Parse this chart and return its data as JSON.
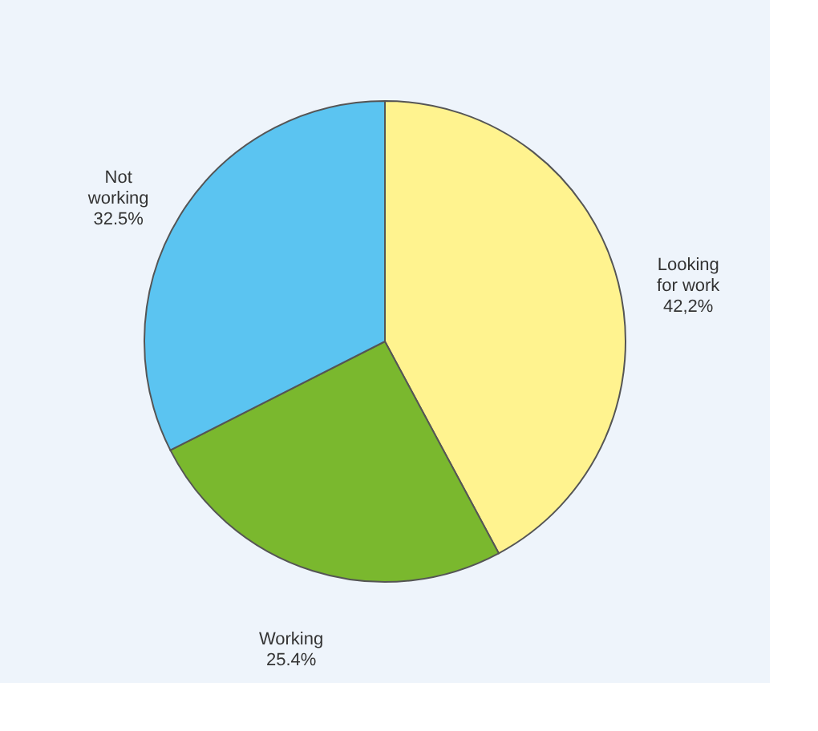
{
  "chart_data": {
    "type": "pie",
    "categories": [
      "Looking for work",
      "Working",
      "Not working"
    ],
    "values": [
      42.2,
      25.4,
      32.5
    ],
    "value_labels": [
      "42,2%",
      "25.4%",
      "32.5%"
    ],
    "colors": [
      "#fff38f",
      "#7ab82e",
      "#5bc4f1"
    ],
    "legend": false
  }
}
